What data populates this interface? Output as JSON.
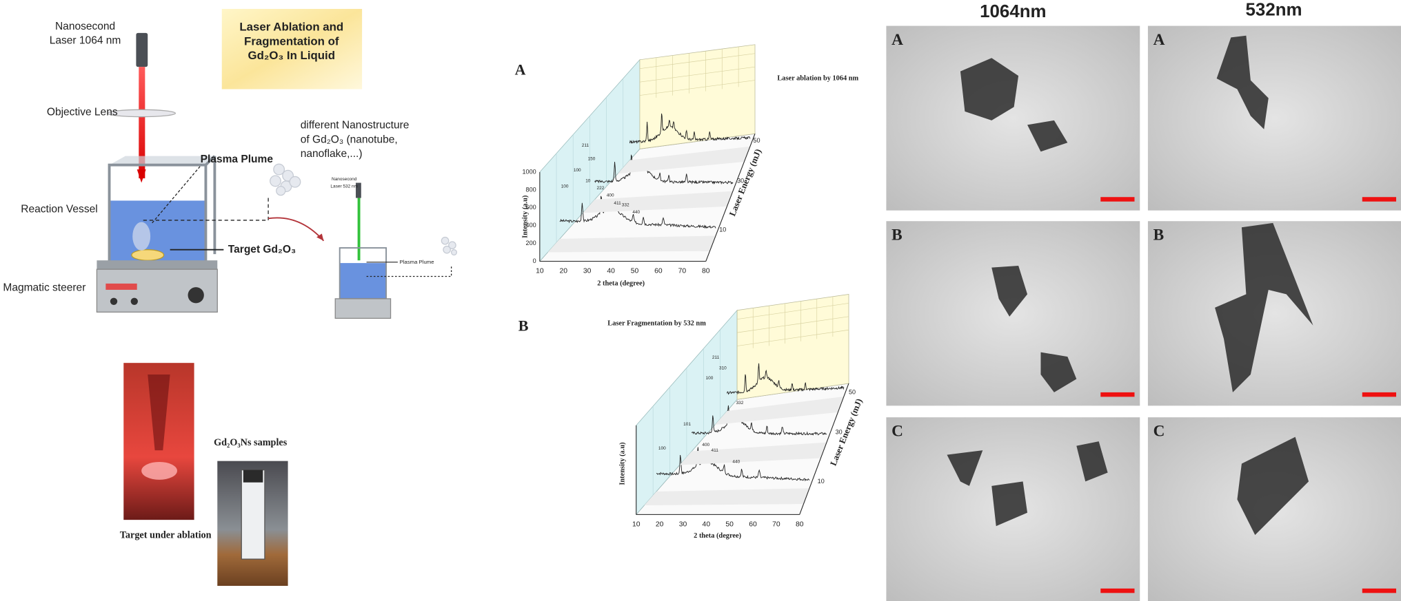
{
  "setup": {
    "laser_label": [
      "Nanosecond",
      "Laser 1064 nm"
    ],
    "title": [
      "Laser Ablation and",
      "Fragmentation of",
      "Gd₂O₃ In Liquid"
    ],
    "objective_lens": "Objective Lens",
    "plasma_plume": "Plasma Plume",
    "reaction_vessel": "Reaction Vessel",
    "target": "Target Gd₂O₃",
    "stirrer": "Magmatic steerer",
    "nanostructure": [
      "different Nanostructure",
      "of Gd₂O₃ (nanotube,",
      "nanoflake,...)"
    ],
    "inset_laser": [
      "Nanosecond",
      "Laser 532 nm"
    ],
    "inset_plume": "Plasma Plume"
  },
  "photos": {
    "ablation": "Target under ablation",
    "samples": "Gd₂O₃Ns samples"
  },
  "xrd": [
    {
      "panel": "A",
      "title": "Laser ablation by 1064 nm",
      "y_label": "Intensity (a.u)",
      "x_label": "2 theta (degree)",
      "z_label": "Laser Energy (mJ)",
      "x_ticks": [
        "10",
        "20",
        "30",
        "40",
        "50",
        "60",
        "70",
        "80"
      ],
      "y_ticks": [
        "0",
        "200",
        "400",
        "600",
        "800",
        "1000"
      ],
      "z_ticks": [
        "10",
        "30",
        "50"
      ],
      "peaks": [
        "100",
        "100",
        "211",
        "150",
        "10",
        "222",
        "400",
        "411",
        "332",
        "440"
      ]
    },
    {
      "panel": "B",
      "title": "Laser Fragmentation by 532 nm",
      "y_label": "Intensity (a.u)",
      "x_label": "2 theta (degree)",
      "z_label": "Laser Energy (mJ)",
      "x_ticks": [
        "10",
        "20",
        "30",
        "40",
        "50",
        "60",
        "70",
        "80"
      ],
      "z_ticks": [
        "10",
        "30",
        "50"
      ],
      "peaks": [
        "211",
        "310",
        "100",
        "332",
        "101",
        "400",
        "411",
        "440",
        "100"
      ]
    }
  ],
  "tem": {
    "columns": [
      "1064nm",
      "532nm"
    ],
    "rows": [
      "A",
      "B",
      "C"
    ]
  }
}
